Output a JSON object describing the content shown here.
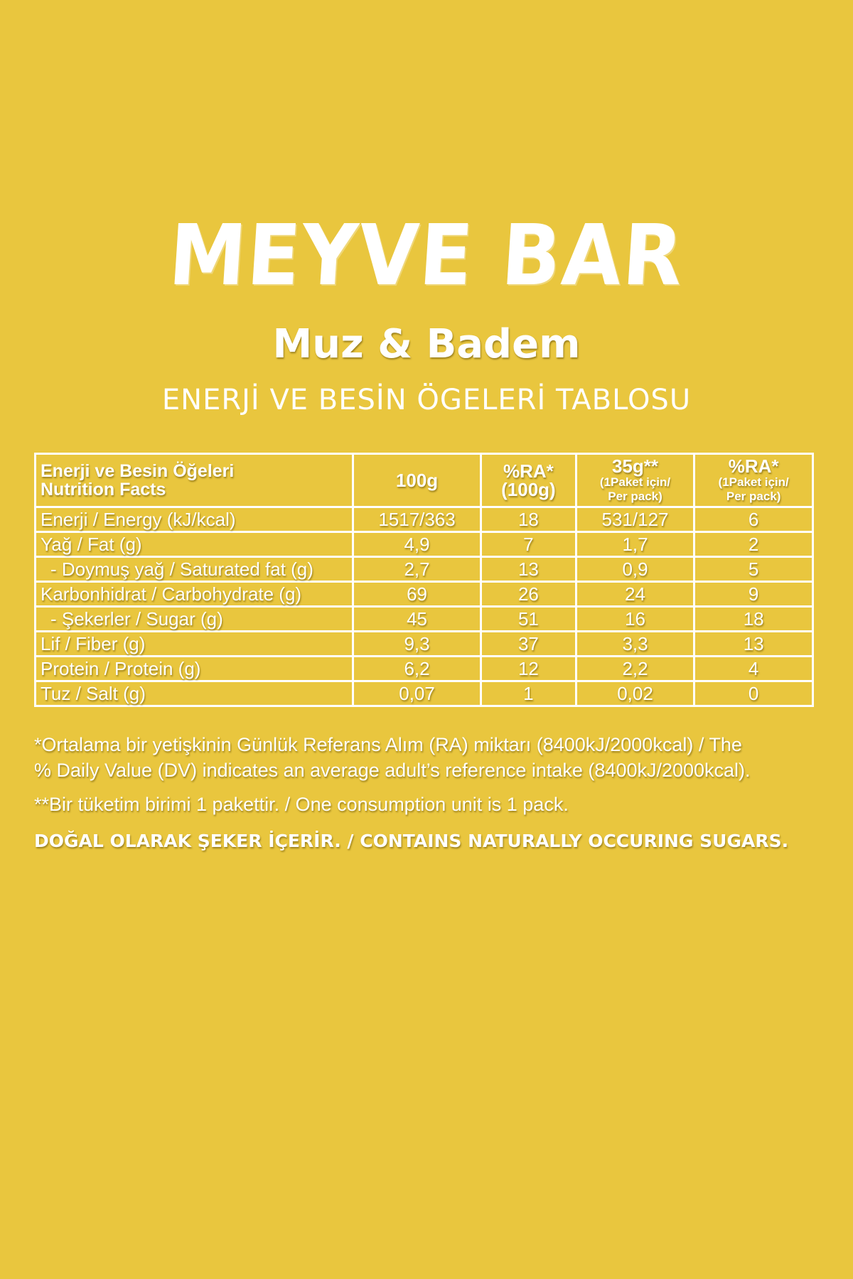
{
  "brand_logo": "MEYVE BAR",
  "flavor": "Muz & Badem",
  "subtitle": "ENERJİ VE BESİN ÖGELERİ TABLOSU",
  "colors": {
    "background": "#E9C63E",
    "text": "#FFFFFF"
  },
  "table": {
    "headers": [
      {
        "line1": "Enerji ve Besin Öğeleri",
        "line2": "Nutrition Facts"
      },
      {
        "line1": "100g"
      },
      {
        "line1": "%RA*",
        "line2": "(100g)"
      },
      {
        "line1": "35g**",
        "line2": "(1Paket için/",
        "line3": "Per pack)"
      },
      {
        "line1": "%RA*",
        "line2": "(1Paket için/",
        "line3": "Per pack)"
      }
    ],
    "rows": [
      {
        "label": "Enerji / Energy (kJ/kcal)",
        "per100": "1517/363",
        "ra100": "18",
        "perpack": "531/127",
        "rapack": "6"
      },
      {
        "label": "Yağ / Fat (g)",
        "per100": "4,9",
        "ra100": "7",
        "perpack": "1,7",
        "rapack": "2"
      },
      {
        "label": "- Doymuş yağ / Saturated fat (g)",
        "per100": "2,7",
        "ra100": "13",
        "perpack": "0,9",
        "rapack": "5"
      },
      {
        "label": "Karbonhidrat / Carbohydrate (g)",
        "per100": "69",
        "ra100": "26",
        "perpack": "24",
        "rapack": "9"
      },
      {
        "label": "- Şekerler / Sugar (g)",
        "per100": "45",
        "ra100": "51",
        "perpack": "16",
        "rapack": "18"
      },
      {
        "label": "Lif / Fiber (g)",
        "per100": "9,3",
        "ra100": "37",
        "perpack": "3,3",
        "rapack": "13"
      },
      {
        "label": "Protein / Protein (g)",
        "per100": "6,2",
        "ra100": "12",
        "perpack": "2,2",
        "rapack": "4"
      },
      {
        "label": "Tuz / Salt (g)",
        "per100": "0,07",
        "ra100": "1",
        "perpack": "0,02",
        "rapack": "0"
      }
    ]
  },
  "notes": {
    "ra_line1": "*Ortalama bir yetişkinin Günlük Referans Alım (RA) miktarı (8400kJ/2000kcal) / The",
    "ra_line2": "% Daily Value (DV) indicates an average adult’s reference intake (8400kJ/2000kcal).",
    "unit": "**Bir tüketim birimi 1 pakettir. / One consumption unit is 1 pack.",
    "sugar": "DOĞAL OLARAK ŞEKER İÇERİR. / CONTAINS NATURALLY OCCURING SUGARS."
  }
}
